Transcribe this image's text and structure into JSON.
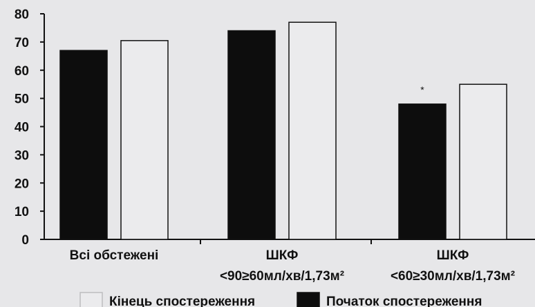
{
  "chart_data": {
    "type": "bar",
    "ylim": [
      0,
      80
    ],
    "yticks": [
      0,
      10,
      20,
      30,
      40,
      50,
      60,
      70,
      80
    ],
    "grid": false,
    "legend_position": "bottom",
    "categories": [
      {
        "line1": "Всі обстежені",
        "line2": "",
        "marker": ""
      },
      {
        "line1": "ШКФ",
        "line2": "<90≥60мл/хв/1,73м²",
        "marker": ""
      },
      {
        "line1": "ШКФ",
        "line2": "<60≥30мл/хв/1,73м²",
        "marker": "*"
      }
    ],
    "series": [
      {
        "name": "Початок спостереження",
        "color": "#0d0d0d",
        "values": [
          67,
          74,
          48
        ]
      },
      {
        "name": "Кінець спостереження",
        "color": "#ebebed",
        "values": [
          70.5,
          77,
          55
        ]
      }
    ],
    "legend_order": [
      1,
      0
    ]
  }
}
